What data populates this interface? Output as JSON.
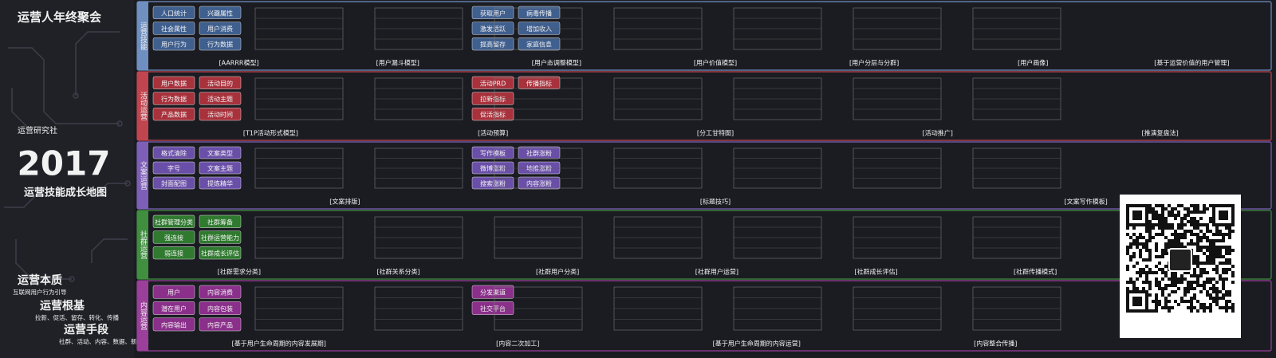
{
  "header": {
    "title": "运营人年终聚会",
    "logo": "运营研究社",
    "year": "2017",
    "subtitle": "运营技能成长地图"
  },
  "tagline": [
    {
      "heading": "运营本质",
      "detail": "互联网用户行为引导"
    },
    {
      "heading": "运营根基",
      "detail": "拉新、促活、留存、转化、传播"
    },
    {
      "heading": "运营手段",
      "detail": "社群、活动、内容、数据、新媒体"
    }
  ],
  "bands": [
    {
      "label": "运营技能",
      "color": "#6f8fc0",
      "fill": "#3f5f8f",
      "boxes": [
        "人口统计",
        "社会属性",
        "用户行为",
        "兴趣属性",
        "用户消费",
        "行为数据",
        "获取用户",
        "激发活跃",
        "提高留存",
        "病毒传播",
        "增加收入",
        "家庭信息"
      ],
      "captions": [
        "[AARRR模型]",
        "[用户漏斗模型]",
        "[用户态调整模型]",
        "[用户价值模型]",
        "[用户分层与分群]",
        "[用户画像]",
        "[基于运营价值的用户管理]"
      ]
    },
    {
      "label": "活动运营",
      "color": "#c0454f",
      "fill": "#a8323c",
      "boxes": [
        "用户数据",
        "行为数据",
        "产品数据",
        "活动目的",
        "活动主题",
        "活动时间",
        "活动PRD",
        "拉新指标",
        "促活指标",
        "传播指标"
      ],
      "captions": [
        "[T1P活动形式模型]",
        "[活动预算]",
        "[分工甘特图]",
        "[活动推广]",
        "[推演复盘法]"
      ]
    },
    {
      "label": "文案运营",
      "color": "#7e5fb8",
      "fill": "#6a4fa8",
      "boxes": [
        "格式清除",
        "字号",
        "封面配图",
        "文案类型",
        "文案主题",
        "提炼精华",
        "写作模板",
        "微博涨粉",
        "搜索涨粉",
        "社群涨粉",
        "地推涨粉",
        "内容涨粉"
      ],
      "captions": [
        "[文案排版]",
        "[标题技巧]",
        "[文案写作模板]"
      ]
    },
    {
      "label": "社群运营",
      "color": "#3f8f3f",
      "fill": "#2f7a2f",
      "boxes": [
        "社群管理分类",
        "强连接",
        "弱连接",
        "社群筹备",
        "社群运营能力",
        "社群成长评估"
      ],
      "captions": [
        "[社群需求分类]",
        "[社群关系分类]",
        "[社群用户分类]",
        "[社群用户运营]",
        "[社群成长评估]",
        "[社群传播模式]"
      ]
    },
    {
      "label": "内容运营",
      "color": "#9a3f9a",
      "fill": "#8a2f8a",
      "boxes": [
        "用户",
        "潜在用户",
        "内容输出",
        "内容消费",
        "内容包装",
        "内容产品",
        "分发渠道",
        "社交平台"
      ],
      "captions": [
        "[基于用户生命周期的内容发展期]",
        "[内容二次加工]",
        "[基于用户生命周期的内容运营]",
        "[内容整合传播]"
      ]
    }
  ]
}
